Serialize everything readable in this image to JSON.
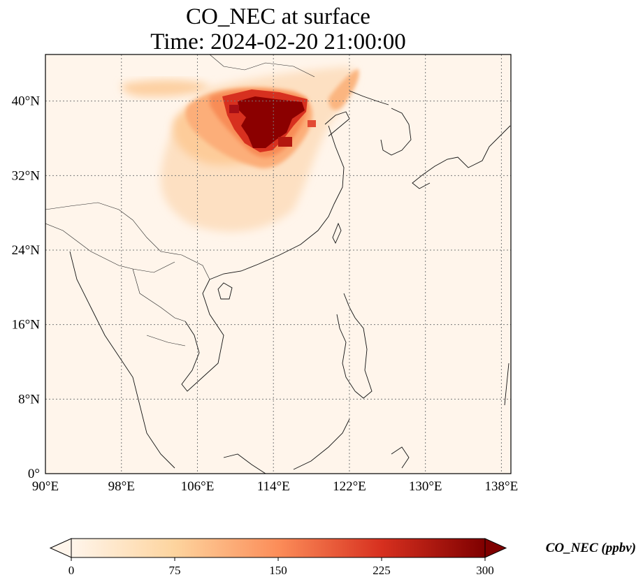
{
  "title": {
    "line1": "CO_NEC at surface",
    "line2": "Time: 2024-02-20 21:00:00"
  },
  "map": {
    "extent": {
      "lon": [
        90,
        139
      ],
      "lat": [
        0,
        45
      ]
    },
    "lat_ticks": [
      "40°N",
      "32°N",
      "24°N",
      "16°N",
      "8°N",
      "0°"
    ],
    "lat_values": [
      40,
      32,
      24,
      16,
      8,
      0
    ],
    "lon_ticks": [
      "90°E",
      "98°E",
      "106°E",
      "114°E",
      "122°E",
      "130°E",
      "138°E"
    ],
    "lon_values": [
      90,
      98,
      106,
      114,
      122,
      130,
      138
    ],
    "gridlines": true,
    "background_color": "#fff5eb"
  },
  "colorbar": {
    "colormap": "OrRd-like",
    "min": 0,
    "max": 300,
    "extend": "both",
    "ticks": [
      "0",
      "75",
      "150",
      "225",
      "300"
    ],
    "tick_values": [
      0,
      75,
      150,
      225,
      300
    ],
    "label": "CO_NEC (ppbv)",
    "colors": [
      "#fff5eb",
      "#fdd49e",
      "#fc8d59",
      "#d7301f",
      "#7f0000"
    ]
  }
}
